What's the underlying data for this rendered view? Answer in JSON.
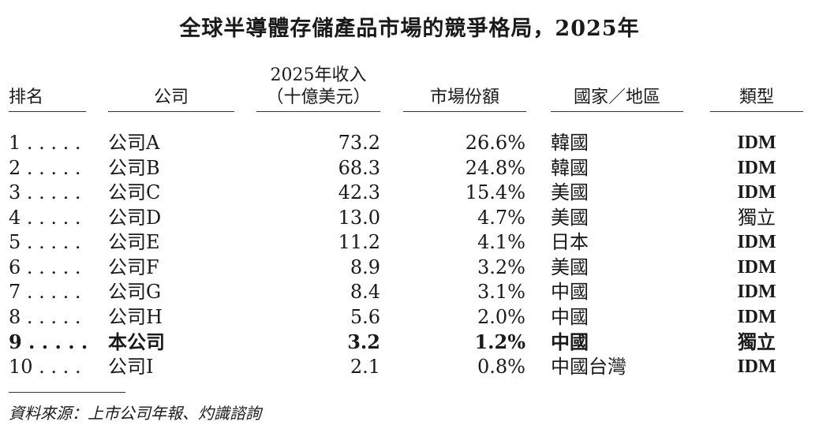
{
  "title": "全球半導體存儲產品市場的競爭格局，2025年",
  "headers": {
    "rank": "排名",
    "company": "公司",
    "revenue_line1": "2025年收入",
    "revenue_line2": "（十億美元）",
    "share": "市場份額",
    "region": "國家／地區",
    "type": "類型"
  },
  "rows": [
    {
      "rank": "1 . . . . .",
      "company": "公司A",
      "revenue": "73.2",
      "share": "26.6%",
      "region": "韓國",
      "type": "IDM"
    },
    {
      "rank": "2 . . . . .",
      "company": "公司B",
      "revenue": "68.3",
      "share": "24.8%",
      "region": "韓國",
      "type": "IDM"
    },
    {
      "rank": "3 . . . . .",
      "company": "公司C",
      "revenue": "42.3",
      "share": "15.4%",
      "region": "美國",
      "type": "IDM"
    },
    {
      "rank": "4 . . . . .",
      "company": "公司D",
      "revenue": "13.0",
      "share": "4.7%",
      "region": "美國",
      "type": "獨立"
    },
    {
      "rank": "5 . . . . .",
      "company": "公司E",
      "revenue": "11.2",
      "share": "4.1%",
      "region": "日本",
      "type": "IDM"
    },
    {
      "rank": "6 . . . . .",
      "company": "公司F",
      "revenue": "8.9",
      "share": "3.2%",
      "region": "美國",
      "type": "IDM"
    },
    {
      "rank": "7 . . . . .",
      "company": "公司G",
      "revenue": "8.4",
      "share": "3.1%",
      "region": "中國",
      "type": "IDM"
    },
    {
      "rank": "8 . . . . .",
      "company": "公司H",
      "revenue": "5.6",
      "share": "2.0%",
      "region": "中國",
      "type": "IDM"
    },
    {
      "rank": "9 . . . . .",
      "company": "本公司",
      "revenue": "3.2",
      "share": "1.2%",
      "region": "中國",
      "type": "獨立",
      "highlight": true
    },
    {
      "rank": "10 . . . .",
      "company": "公司I",
      "revenue": "2.1",
      "share": "0.8%",
      "region": "中國台灣",
      "type": "IDM"
    }
  ],
  "source": "資料來源：上市公司年報、灼識諮詢"
}
